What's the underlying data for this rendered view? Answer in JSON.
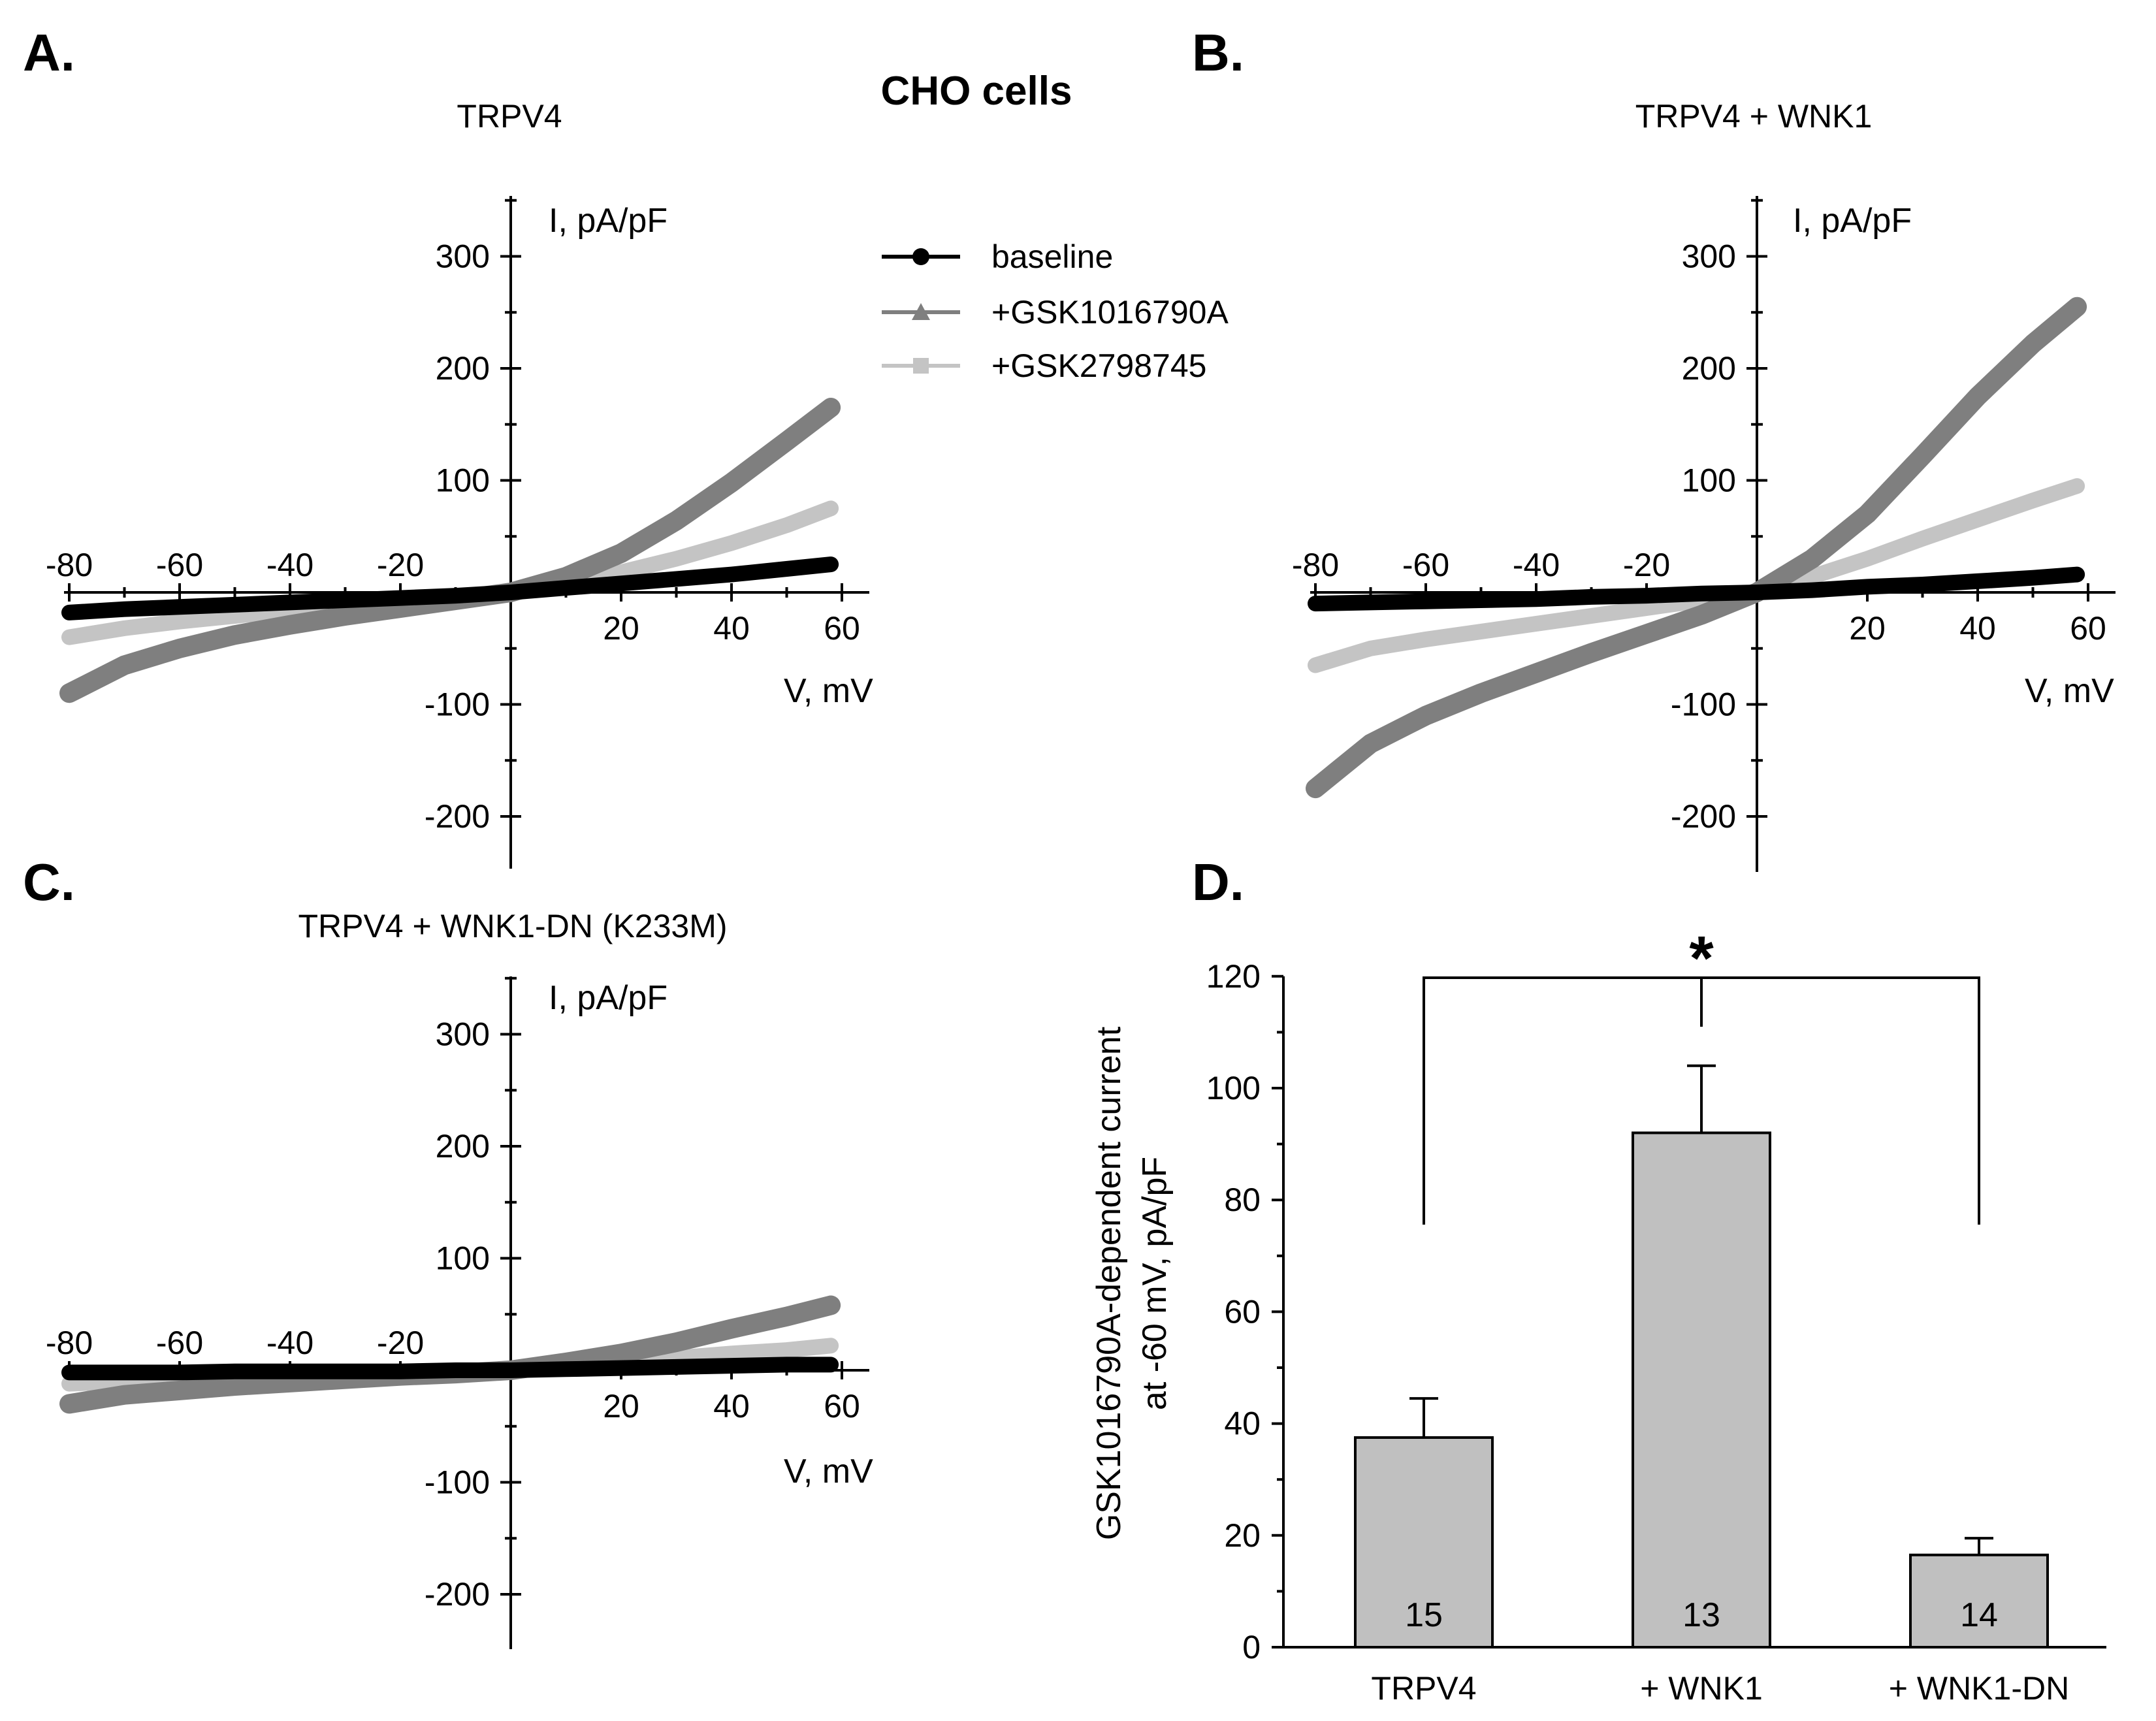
{
  "figure": {
    "title": "CHO cells",
    "legend": [
      {
        "label": "baseline",
        "color": "#000000",
        "marker": "circle"
      },
      {
        "label": "+GSK1016790A",
        "color": "#7f7f7f",
        "marker": "triangle"
      },
      {
        "label": "+GSK2798745",
        "color": "#c4c4c4",
        "marker": "square"
      }
    ]
  },
  "chart_data": [
    {
      "panel": "A.",
      "type": "line",
      "title": "TRPV4",
      "xlabel": "V, mV",
      "ylabel": "I, pA/pF",
      "xlim": [
        -80,
        60
      ],
      "ylim": [
        -250,
        350
      ],
      "xticks": [
        -80,
        -60,
        -40,
        -20,
        20,
        40,
        60
      ],
      "xticklabels": [
        "-80",
        "-60",
        "-40",
        "-20",
        "20",
        "40",
        "60"
      ],
      "yticks": [
        300,
        200,
        100,
        -100,
        -200
      ],
      "yticklabels": [
        "300",
        "200",
        "100",
        "-100",
        "-200"
      ],
      "x": [
        -80,
        -70,
        -60,
        -50,
        -40,
        -30,
        -20,
        -10,
        0,
        10,
        20,
        30,
        40,
        50,
        58
      ],
      "series": [
        {
          "name": "baseline",
          "color": "#000000",
          "values": [
            -18,
            -15,
            -13,
            -11,
            -9,
            -7,
            -5,
            -3,
            0,
            4,
            8,
            12,
            16,
            21,
            25
          ]
        },
        {
          "name": "+GSK1016790A",
          "color": "#7f7f7f",
          "values": [
            -90,
            -65,
            -50,
            -38,
            -29,
            -21,
            -14,
            -7,
            0,
            14,
            35,
            64,
            98,
            135,
            165
          ]
        },
        {
          "name": "+GSK2798745",
          "color": "#c4c4c4",
          "values": [
            -40,
            -32,
            -26,
            -21,
            -16,
            -12,
            -8,
            -4,
            0,
            8,
            18,
            30,
            44,
            60,
            75
          ]
        }
      ]
    },
    {
      "panel": "B.",
      "type": "line",
      "title": "TRPV4 + WNK1",
      "xlabel": "V, mV",
      "ylabel": "I, pA/pF",
      "xlim": [
        -80,
        60
      ],
      "ylim": [
        -250,
        350
      ],
      "xticks": [
        -80,
        -60,
        -40,
        -20,
        20,
        40,
        60
      ],
      "xticklabels": [
        "-80",
        "-60",
        "-40",
        "-20",
        "20",
        "40",
        "60"
      ],
      "yticks": [
        300,
        200,
        100,
        -100,
        -200
      ],
      "yticklabels": [
        "300",
        "200",
        "100",
        "-100",
        "-200"
      ],
      "x": [
        -80,
        -70,
        -60,
        -50,
        -40,
        -30,
        -20,
        -10,
        0,
        10,
        20,
        30,
        40,
        50,
        58
      ],
      "series": [
        {
          "name": "baseline",
          "color": "#000000",
          "values": [
            -10,
            -9,
            -8,
            -7,
            -6,
            -4,
            -3,
            -1,
            0,
            2,
            5,
            7,
            10,
            13,
            16
          ]
        },
        {
          "name": "+GSK1016790A",
          "color": "#7f7f7f",
          "values": [
            -175,
            -135,
            -110,
            -90,
            -72,
            -54,
            -37,
            -20,
            0,
            30,
            70,
            122,
            175,
            222,
            255
          ]
        },
        {
          "name": "+GSK2798745",
          "color": "#c4c4c4",
          "values": [
            -65,
            -50,
            -42,
            -35,
            -28,
            -21,
            -14,
            -7,
            0,
            14,
            30,
            48,
            65,
            82,
            95
          ]
        }
      ]
    },
    {
      "panel": "C.",
      "type": "line",
      "title": "TRPV4 + WNK1-DN (K233M)",
      "xlabel": "V, mV",
      "ylabel": "I, pA/pF",
      "xlim": [
        -80,
        60
      ],
      "ylim": [
        -250,
        350
      ],
      "xticks": [
        -80,
        -60,
        -40,
        -20,
        20,
        40,
        60
      ],
      "xticklabels": [
        "-80",
        "-60",
        "-40",
        "-20",
        "20",
        "40",
        "60"
      ],
      "yticks": [
        300,
        200,
        100,
        -100,
        -200
      ],
      "yticklabels": [
        "300",
        "200",
        "100",
        "-100",
        "-200"
      ],
      "x": [
        -80,
        -70,
        -60,
        -50,
        -40,
        -30,
        -20,
        -10,
        0,
        10,
        20,
        30,
        40,
        50,
        58
      ],
      "series": [
        {
          "name": "baseline",
          "color": "#000000",
          "values": [
            -2,
            -2,
            -2,
            -1,
            -1,
            -1,
            -1,
            0,
            0,
            1,
            2,
            3,
            4,
            5,
            5
          ]
        },
        {
          "name": "+GSK1016790A",
          "color": "#7f7f7f",
          "values": [
            -30,
            -22,
            -18,
            -14,
            -11,
            -8,
            -5,
            -3,
            0,
            7,
            15,
            25,
            37,
            48,
            58
          ]
        },
        {
          "name": "+GSK2798745",
          "color": "#c4c4c4",
          "values": [
            -12,
            -10,
            -8,
            -7,
            -6,
            -4,
            -3,
            -1,
            0,
            3,
            7,
            11,
            15,
            18,
            22
          ]
        }
      ]
    },
    {
      "panel": "D.",
      "type": "bar",
      "title": "",
      "categories": [
        "TRPV4",
        "+ WNK1",
        "+ WNK1-DN"
      ],
      "values": [
        37.5,
        92,
        16.5
      ],
      "errors": [
        7,
        12,
        3
      ],
      "n_labels": [
        "15",
        "13",
        "14"
      ],
      "ylabel": [
        "GSK1016790A-dependent current",
        "at -60 mV, pA/pF"
      ],
      "ylim": [
        0,
        120
      ],
      "yticks": [
        0,
        20,
        40,
        60,
        80,
        100,
        120
      ],
      "yticklabels": [
        "0",
        "20",
        "40",
        "60",
        "80",
        "100",
        "120"
      ],
      "bar_color": "#c0c0c0",
      "significance": "*"
    }
  ]
}
